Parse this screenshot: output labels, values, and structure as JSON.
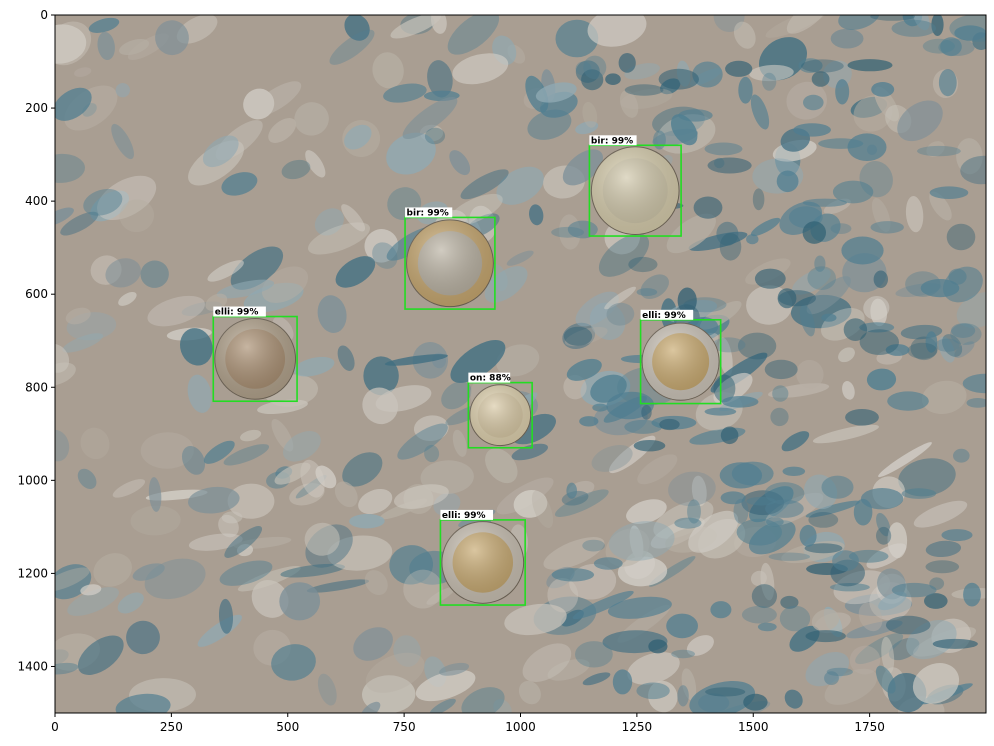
{
  "image": {
    "width_units": 2000,
    "height_units": 1500,
    "background": "carpet",
    "colors": {
      "carpet_beige": "#a99e92",
      "carpet_blue": "#4f7e91",
      "carpet_light": "#c9c4bb",
      "box": "#22dd22"
    }
  },
  "axes": {
    "x": {
      "ticks": [
        0,
        250,
        500,
        750,
        1000,
        1250,
        1500,
        1750
      ],
      "labels": [
        "0",
        "250",
        "500",
        "750",
        "1000",
        "1250",
        "1500",
        "1750"
      ],
      "range": [
        0,
        2000
      ]
    },
    "y": {
      "ticks": [
        0,
        200,
        400,
        600,
        800,
        1000,
        1200,
        1400
      ],
      "labels": [
        "0",
        "200",
        "400",
        "600",
        "800",
        "1000",
        "1200",
        "1400"
      ],
      "range": [
        0,
        1500
      ],
      "inverted": true
    }
  },
  "detections": [
    {
      "label": "bir: 99%",
      "class": "bir",
      "x0": 1148,
      "y0": 280,
      "x1": 1345,
      "y1": 475,
      "coin_color": "#cfc6a8",
      "ring_color": "#d9cfae"
    },
    {
      "label": "bir: 99%",
      "class": "bir",
      "x0": 752,
      "y0": 435,
      "x1": 945,
      "y1": 632,
      "coin_color": "#b8b0a0",
      "ring_color": "#c9a970"
    },
    {
      "label": "elli: 99%",
      "class": "elli",
      "x0": 340,
      "y0": 648,
      "x1": 520,
      "y1": 830,
      "coin_color": "#a88d6f",
      "ring_color": "#b4a48d"
    },
    {
      "label": "elli: 99%",
      "class": "elli",
      "x0": 1258,
      "y0": 655,
      "x1": 1430,
      "y1": 835,
      "coin_color": "#c8a86c",
      "ring_color": "#cfc7bb"
    },
    {
      "label": "on: 88%",
      "class": "on",
      "x0": 888,
      "y0": 790,
      "x1": 1025,
      "y1": 930,
      "coin_color": "#d8c8a3",
      "ring_color": "#e2d4b0"
    },
    {
      "label": "elli: 99%",
      "class": "elli",
      "x0": 828,
      "y0": 1085,
      "x1": 1010,
      "y1": 1268,
      "coin_color": "#c6a76d",
      "ring_color": "#cbc2b4"
    }
  ]
}
